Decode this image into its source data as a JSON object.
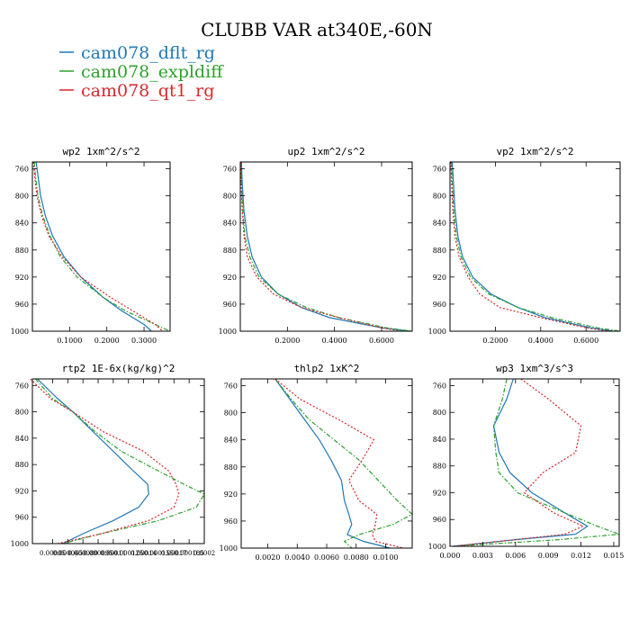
{
  "title": "CLUBB VAR at340E,-60N",
  "legend": [
    {
      "name": "cam078_dflt_rg",
      "color": "#1f77b4",
      "dash": "solid"
    },
    {
      "name": "cam078_expldiff",
      "color": "#2ca02c",
      "dash": "dashdot"
    },
    {
      "name": "cam078_qt1_rg",
      "color": "#d62728",
      "dash": "dotted"
    }
  ],
  "chart_data": [
    {
      "type": "line",
      "title": "wp2   1xm^2/s^2",
      "xlim": [
        0,
        0.37
      ],
      "ylim": [
        1000,
        750
      ],
      "xticks": [
        0.1,
        0.2,
        0.3
      ],
      "xtick_labels": [
        "0.1000",
        "0.2000",
        "0.3000"
      ],
      "yticks": [
        760,
        800,
        840,
        880,
        920,
        960,
        1000
      ],
      "ytick_labels": [
        "760",
        "800",
        "840",
        "880",
        "920",
        "960",
        "1000"
      ],
      "y": [
        750,
        770,
        800,
        830,
        860,
        890,
        920,
        950,
        970,
        990,
        1000
      ],
      "series": [
        {
          "name": "cam078_dflt_rg",
          "values": [
            0.01,
            0.015,
            0.022,
            0.035,
            0.055,
            0.085,
            0.13,
            0.19,
            0.24,
            0.3,
            0.32
          ]
        },
        {
          "name": "cam078_expldiff",
          "values": [
            0.005,
            0.008,
            0.015,
            0.028,
            0.048,
            0.075,
            0.12,
            0.19,
            0.25,
            0.33,
            0.37
          ]
        },
        {
          "name": "cam078_qt1_rg",
          "values": [
            0.003,
            0.006,
            0.012,
            0.025,
            0.045,
            0.08,
            0.13,
            0.21,
            0.27,
            0.33,
            0.35
          ]
        }
      ]
    },
    {
      "type": "line",
      "title": "up2   1xm^2/s^2",
      "xlim": [
        0,
        0.73
      ],
      "ylim": [
        1000,
        750
      ],
      "xticks": [
        0.2,
        0.4,
        0.6
      ],
      "xtick_labels": [
        "0.2000",
        "0.4000",
        "0.6000"
      ],
      "yticks": [
        760,
        800,
        840,
        880,
        920,
        960,
        1000
      ],
      "ytick_labels": [
        "760",
        "800",
        "840",
        "880",
        "920",
        "960",
        "1000"
      ],
      "y": [
        750,
        780,
        820,
        860,
        890,
        920,
        945,
        965,
        980,
        995,
        1000
      ],
      "series": [
        {
          "name": "cam078_dflt_rg",
          "values": [
            0.005,
            0.008,
            0.015,
            0.03,
            0.05,
            0.09,
            0.16,
            0.26,
            0.38,
            0.6,
            0.72
          ]
        },
        {
          "name": "cam078_expldiff",
          "values": [
            0.003,
            0.005,
            0.01,
            0.02,
            0.04,
            0.08,
            0.16,
            0.28,
            0.42,
            0.62,
            0.73
          ]
        },
        {
          "name": "cam078_qt1_rg",
          "values": [
            0.002,
            0.004,
            0.008,
            0.016,
            0.03,
            0.07,
            0.14,
            0.26,
            0.42,
            0.6,
            0.68
          ]
        }
      ]
    },
    {
      "type": "line",
      "title": "vp2   1xm^2/s^2",
      "xlim": [
        0,
        0.75
      ],
      "ylim": [
        1000,
        750
      ],
      "xticks": [
        0.2,
        0.4,
        0.6
      ],
      "xtick_labels": [
        "0.2000",
        "0.4000",
        "0.6000"
      ],
      "yticks": [
        760,
        800,
        840,
        880,
        920,
        960,
        1000
      ],
      "ytick_labels": [
        "760",
        "800",
        "840",
        "880",
        "920",
        "960",
        "1000"
      ],
      "y": [
        750,
        780,
        820,
        860,
        890,
        920,
        945,
        965,
        980,
        995,
        1000
      ],
      "series": [
        {
          "name": "cam078_dflt_rg",
          "values": [
            0.01,
            0.015,
            0.022,
            0.035,
            0.055,
            0.1,
            0.18,
            0.3,
            0.42,
            0.62,
            0.72
          ]
        },
        {
          "name": "cam078_expldiff",
          "values": [
            0.006,
            0.01,
            0.016,
            0.028,
            0.048,
            0.09,
            0.17,
            0.3,
            0.45,
            0.65,
            0.75
          ]
        },
        {
          "name": "cam078_qt1_rg",
          "values": [
            0.004,
            0.007,
            0.012,
            0.022,
            0.04,
            0.08,
            0.13,
            0.22,
            0.4,
            0.6,
            0.7
          ]
        }
      ]
    },
    {
      "type": "line",
      "title": "rtp2   1E-6x(kg/kg)^2",
      "xlim": [
        3e-05,
        0.0002
      ],
      "ylim": [
        1000,
        750
      ],
      "xticks": [
        5e-05,
        6.5e-05,
        8e-05,
        9.5e-05,
        0.00011,
        0.000125,
        0.00014,
        0.000155,
        0.00017,
        0.000185,
        0.0002
      ],
      "xtick_labels": [
        "0.00005",
        "0.000065",
        "0.000080",
        "0.000095",
        "0.00011",
        "0.000125",
        "0.00014",
        "0.000155",
        "0.00017",
        "0.000185",
        "0.0002"
      ],
      "yticks": [
        760,
        800,
        840,
        880,
        920,
        960,
        1000
      ],
      "ytick_labels": [
        "760",
        "800",
        "840",
        "880",
        "920",
        "960",
        "1000"
      ],
      "y": [
        750,
        780,
        800,
        830,
        860,
        890,
        910,
        925,
        945,
        965,
        985,
        1000
      ],
      "series": [
        {
          "name": "cam078_dflt_rg",
          "values": [
            3.5e-05,
            5.5e-05,
            7e-05,
            9e-05,
            0.00011,
            0.00013,
            0.000144,
            0.000145,
            0.000135,
            0.00011,
            8e-05,
            6e-05
          ]
        },
        {
          "name": "cam078_expldiff",
          "values": [
            3.3e-05,
            5e-05,
            7e-05,
            9.2e-05,
            0.000118,
            0.000155,
            0.00018,
            0.0002,
            0.000192,
            0.000155,
            9.8e-05,
            6e-05
          ]
        },
        {
          "name": "cam078_qt1_rg",
          "values": [
            2.8e-05,
            4.8e-05,
            7e-05,
            0.0001,
            0.00014,
            0.000165,
            0.000172,
            0.000175,
            0.00017,
            0.000145,
            9.8e-05,
            5.5e-05
          ]
        }
      ]
    },
    {
      "type": "line",
      "title": "thlp2   1xK^2",
      "xlim": [
        0.0002,
        0.0118
      ],
      "ylim": [
        1000,
        750
      ],
      "xticks": [
        0.002,
        0.004,
        0.006,
        0.008,
        0.01
      ],
      "xtick_labels": [
        "0.0020",
        "0.0040",
        "0.0060",
        "0.0080",
        "0.0100"
      ],
      "yticks": [
        760,
        800,
        840,
        880,
        920,
        960,
        1000
      ],
      "ytick_labels": [
        "760",
        "800",
        "840",
        "880",
        "920",
        "960",
        "1000"
      ],
      "y": [
        750,
        780,
        810,
        840,
        870,
        900,
        930,
        950,
        965,
        980,
        990,
        1000
      ],
      "series": [
        {
          "name": "cam078_dflt_rg",
          "values": [
            0.0025,
            0.0035,
            0.0045,
            0.0055,
            0.0063,
            0.007,
            0.0072,
            0.0075,
            0.0077,
            0.0074,
            0.0085,
            0.0103
          ]
        },
        {
          "name": "cam078_expldiff",
          "values": [
            0.0025,
            0.0036,
            0.0048,
            0.0065,
            0.0082,
            0.0095,
            0.0108,
            0.0118,
            0.0105,
            0.0082,
            0.0072,
            0.0077
          ]
        },
        {
          "name": "cam078_qt1_rg",
          "values": [
            0.0025,
            0.0042,
            0.0068,
            0.0092,
            0.0084,
            0.0075,
            0.0082,
            0.0094,
            0.0093,
            0.0091,
            0.0093,
            0.0112
          ]
        }
      ]
    },
    {
      "type": "line",
      "title": "wp3   1xm^3/s^3",
      "xlim": [
        0,
        0.0155
      ],
      "ylim": [
        1000,
        750
      ],
      "xticks": [
        0,
        0.003,
        0.006,
        0.009,
        0.012,
        0.015
      ],
      "xtick_labels": [
        "0.000",
        "0.003",
        "0.006",
        "0.009",
        "0.012",
        "0.015"
      ],
      "yticks": [
        760,
        800,
        840,
        880,
        920,
        960,
        1000
      ],
      "ytick_labels": [
        "760",
        "800",
        "840",
        "880",
        "920",
        "960",
        "1000"
      ],
      "y": [
        750,
        780,
        820,
        860,
        890,
        920,
        950,
        970,
        982,
        990,
        1000
      ],
      "series": [
        {
          "name": "cam078_dflt_rg",
          "values": [
            0.0058,
            0.0052,
            0.004,
            0.0045,
            0.0055,
            0.0075,
            0.0105,
            0.0126,
            0.0115,
            0.006,
            0.0003
          ]
        },
        {
          "name": "cam078_expldiff",
          "values": [
            0.0052,
            0.0048,
            0.004,
            0.0042,
            0.0045,
            0.0062,
            0.0105,
            0.0135,
            0.0155,
            0.01,
            0.0003
          ]
        },
        {
          "name": "cam078_qt1_rg",
          "values": [
            0.0065,
            0.009,
            0.012,
            0.0115,
            0.0085,
            0.0068,
            0.0095,
            0.0122,
            0.0105,
            0.006,
            0.0003
          ]
        }
      ]
    }
  ]
}
